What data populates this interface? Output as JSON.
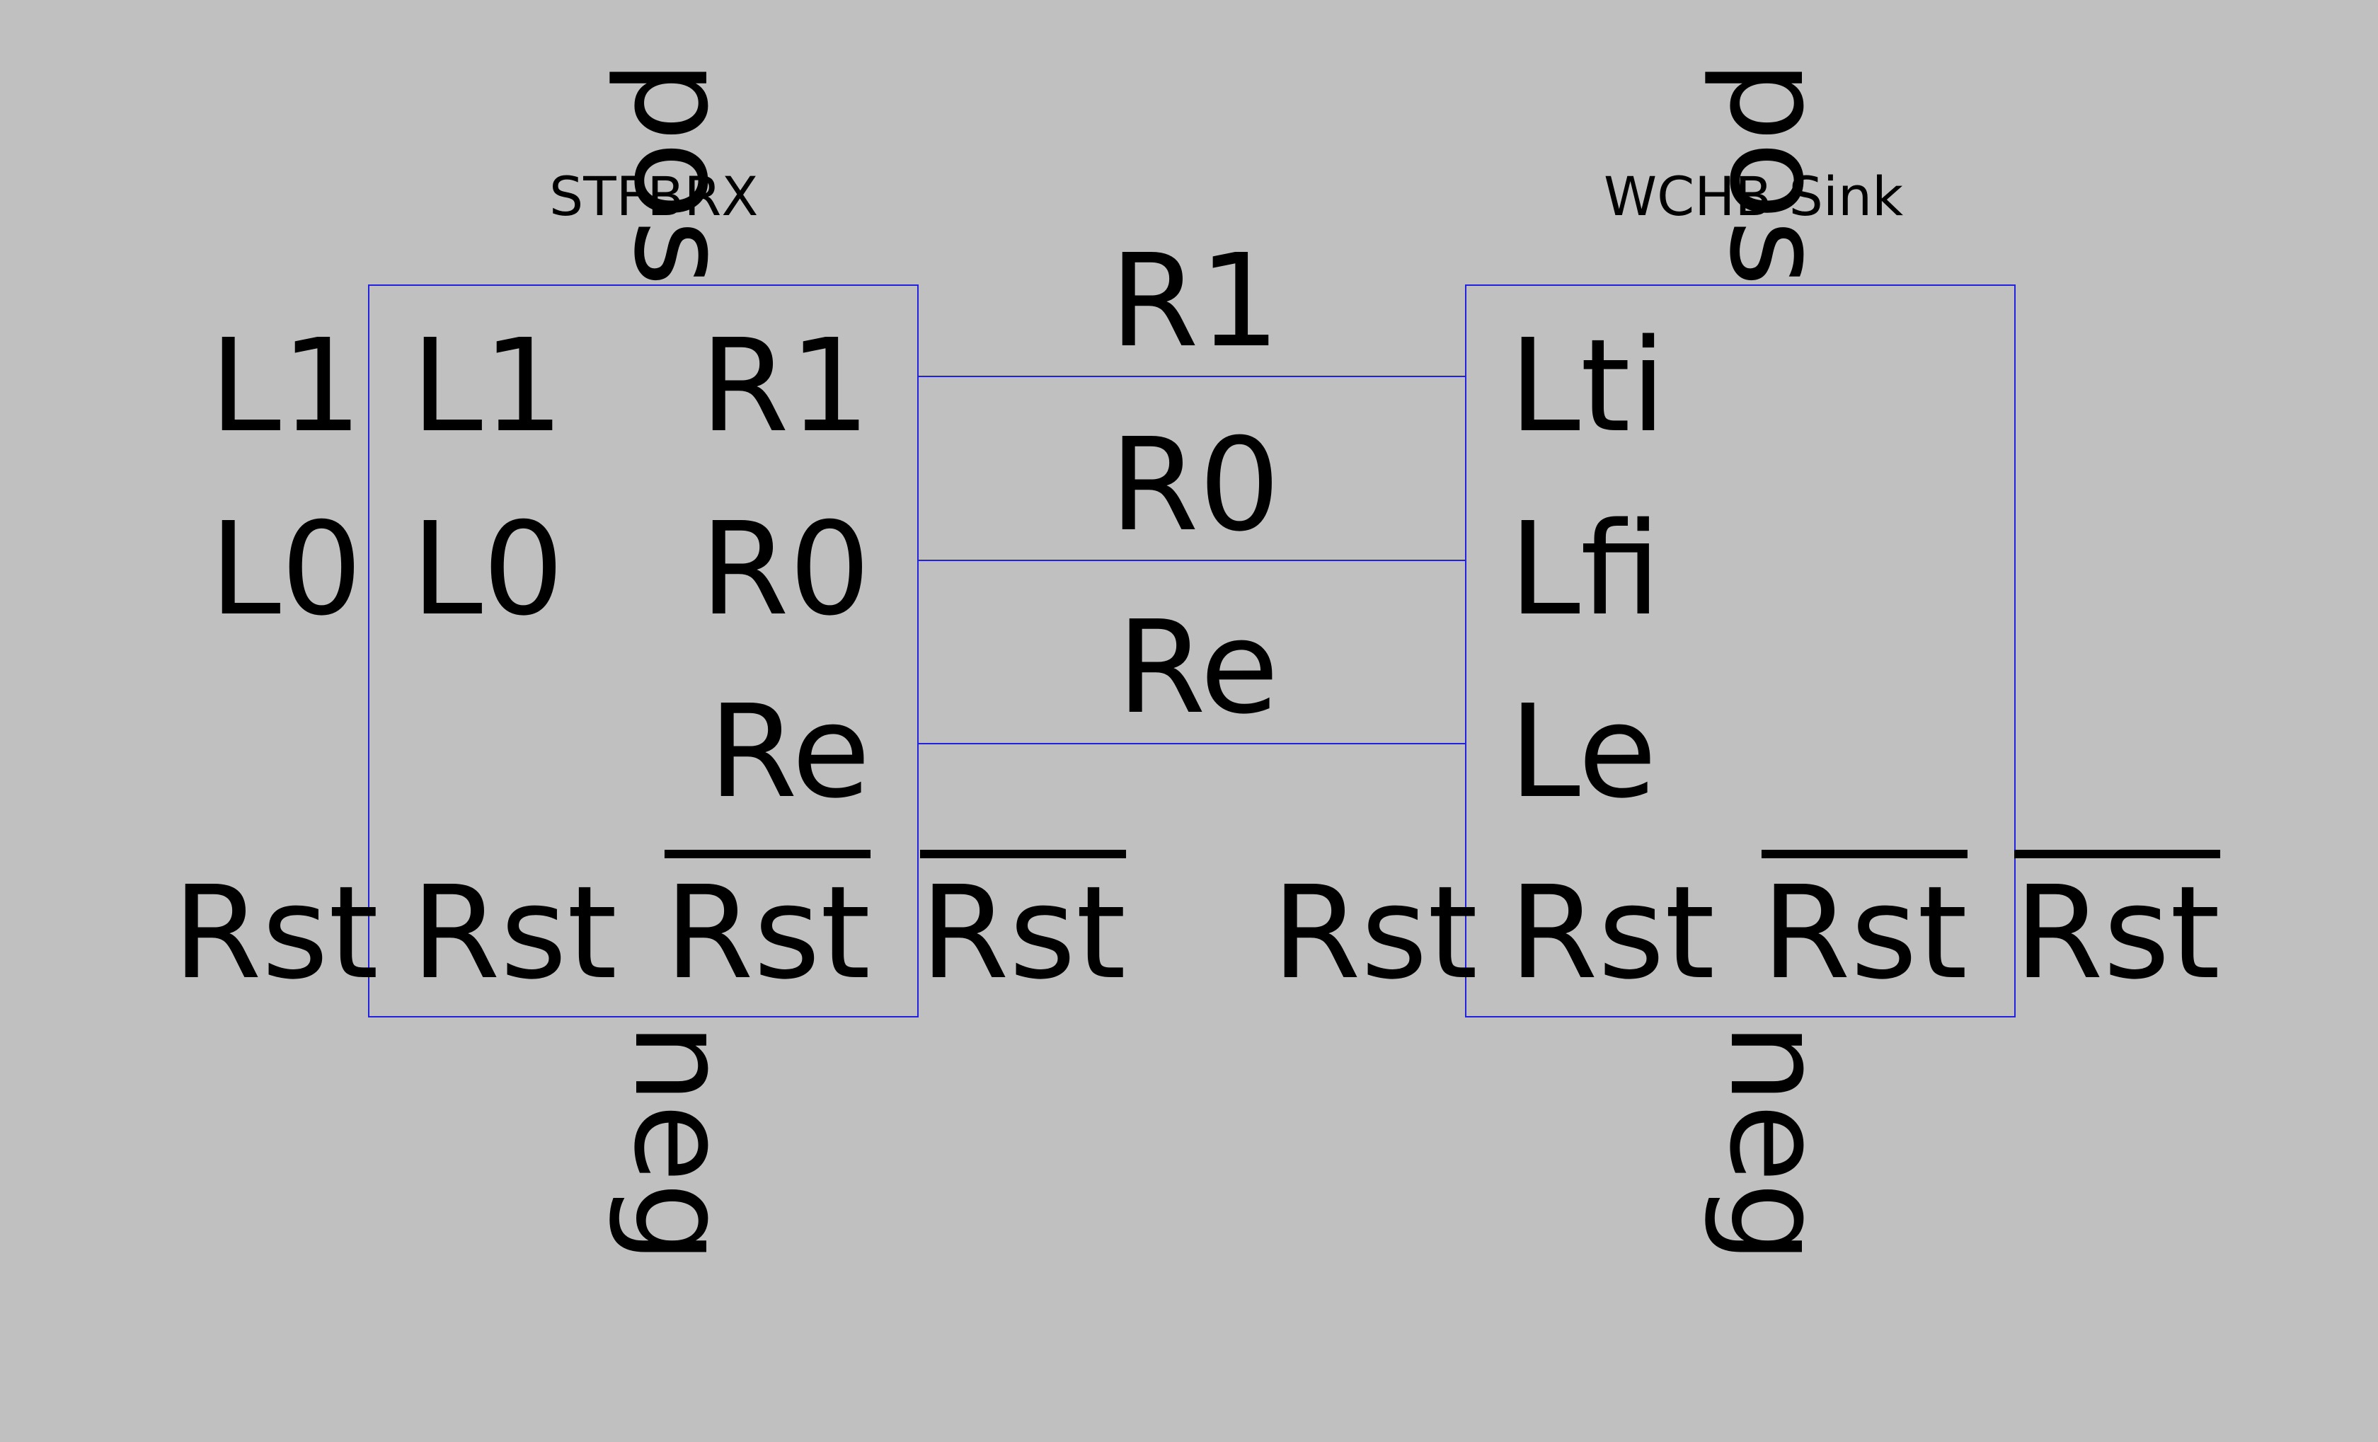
{
  "blocks": {
    "left": {
      "title": "STFBRX",
      "top_pin": "pos",
      "bottom_pin": "neg",
      "outside_left": [
        "L1",
        "L0",
        "Rst"
      ],
      "inside_left": [
        "L1",
        "L0",
        "Rst"
      ],
      "inside_right": [
        "R1",
        "R0",
        "Re",
        "Rst"
      ],
      "outside_right": [
        "Rst"
      ]
    },
    "right": {
      "title": "WCHB Sink",
      "top_pin": "pos",
      "bottom_pin": "neg",
      "outside_left": [
        "Rst"
      ],
      "inside_left": [
        "Lti",
        "Lfi",
        "Le",
        "Rst"
      ],
      "inside_right": [
        "Rst"
      ],
      "outside_right": [
        "Rst"
      ]
    }
  },
  "wires": [
    "R1",
    "R0",
    "Re"
  ],
  "colors": {
    "background": "#c0c0c0",
    "wire": "#2222dd",
    "text": "#000000"
  }
}
